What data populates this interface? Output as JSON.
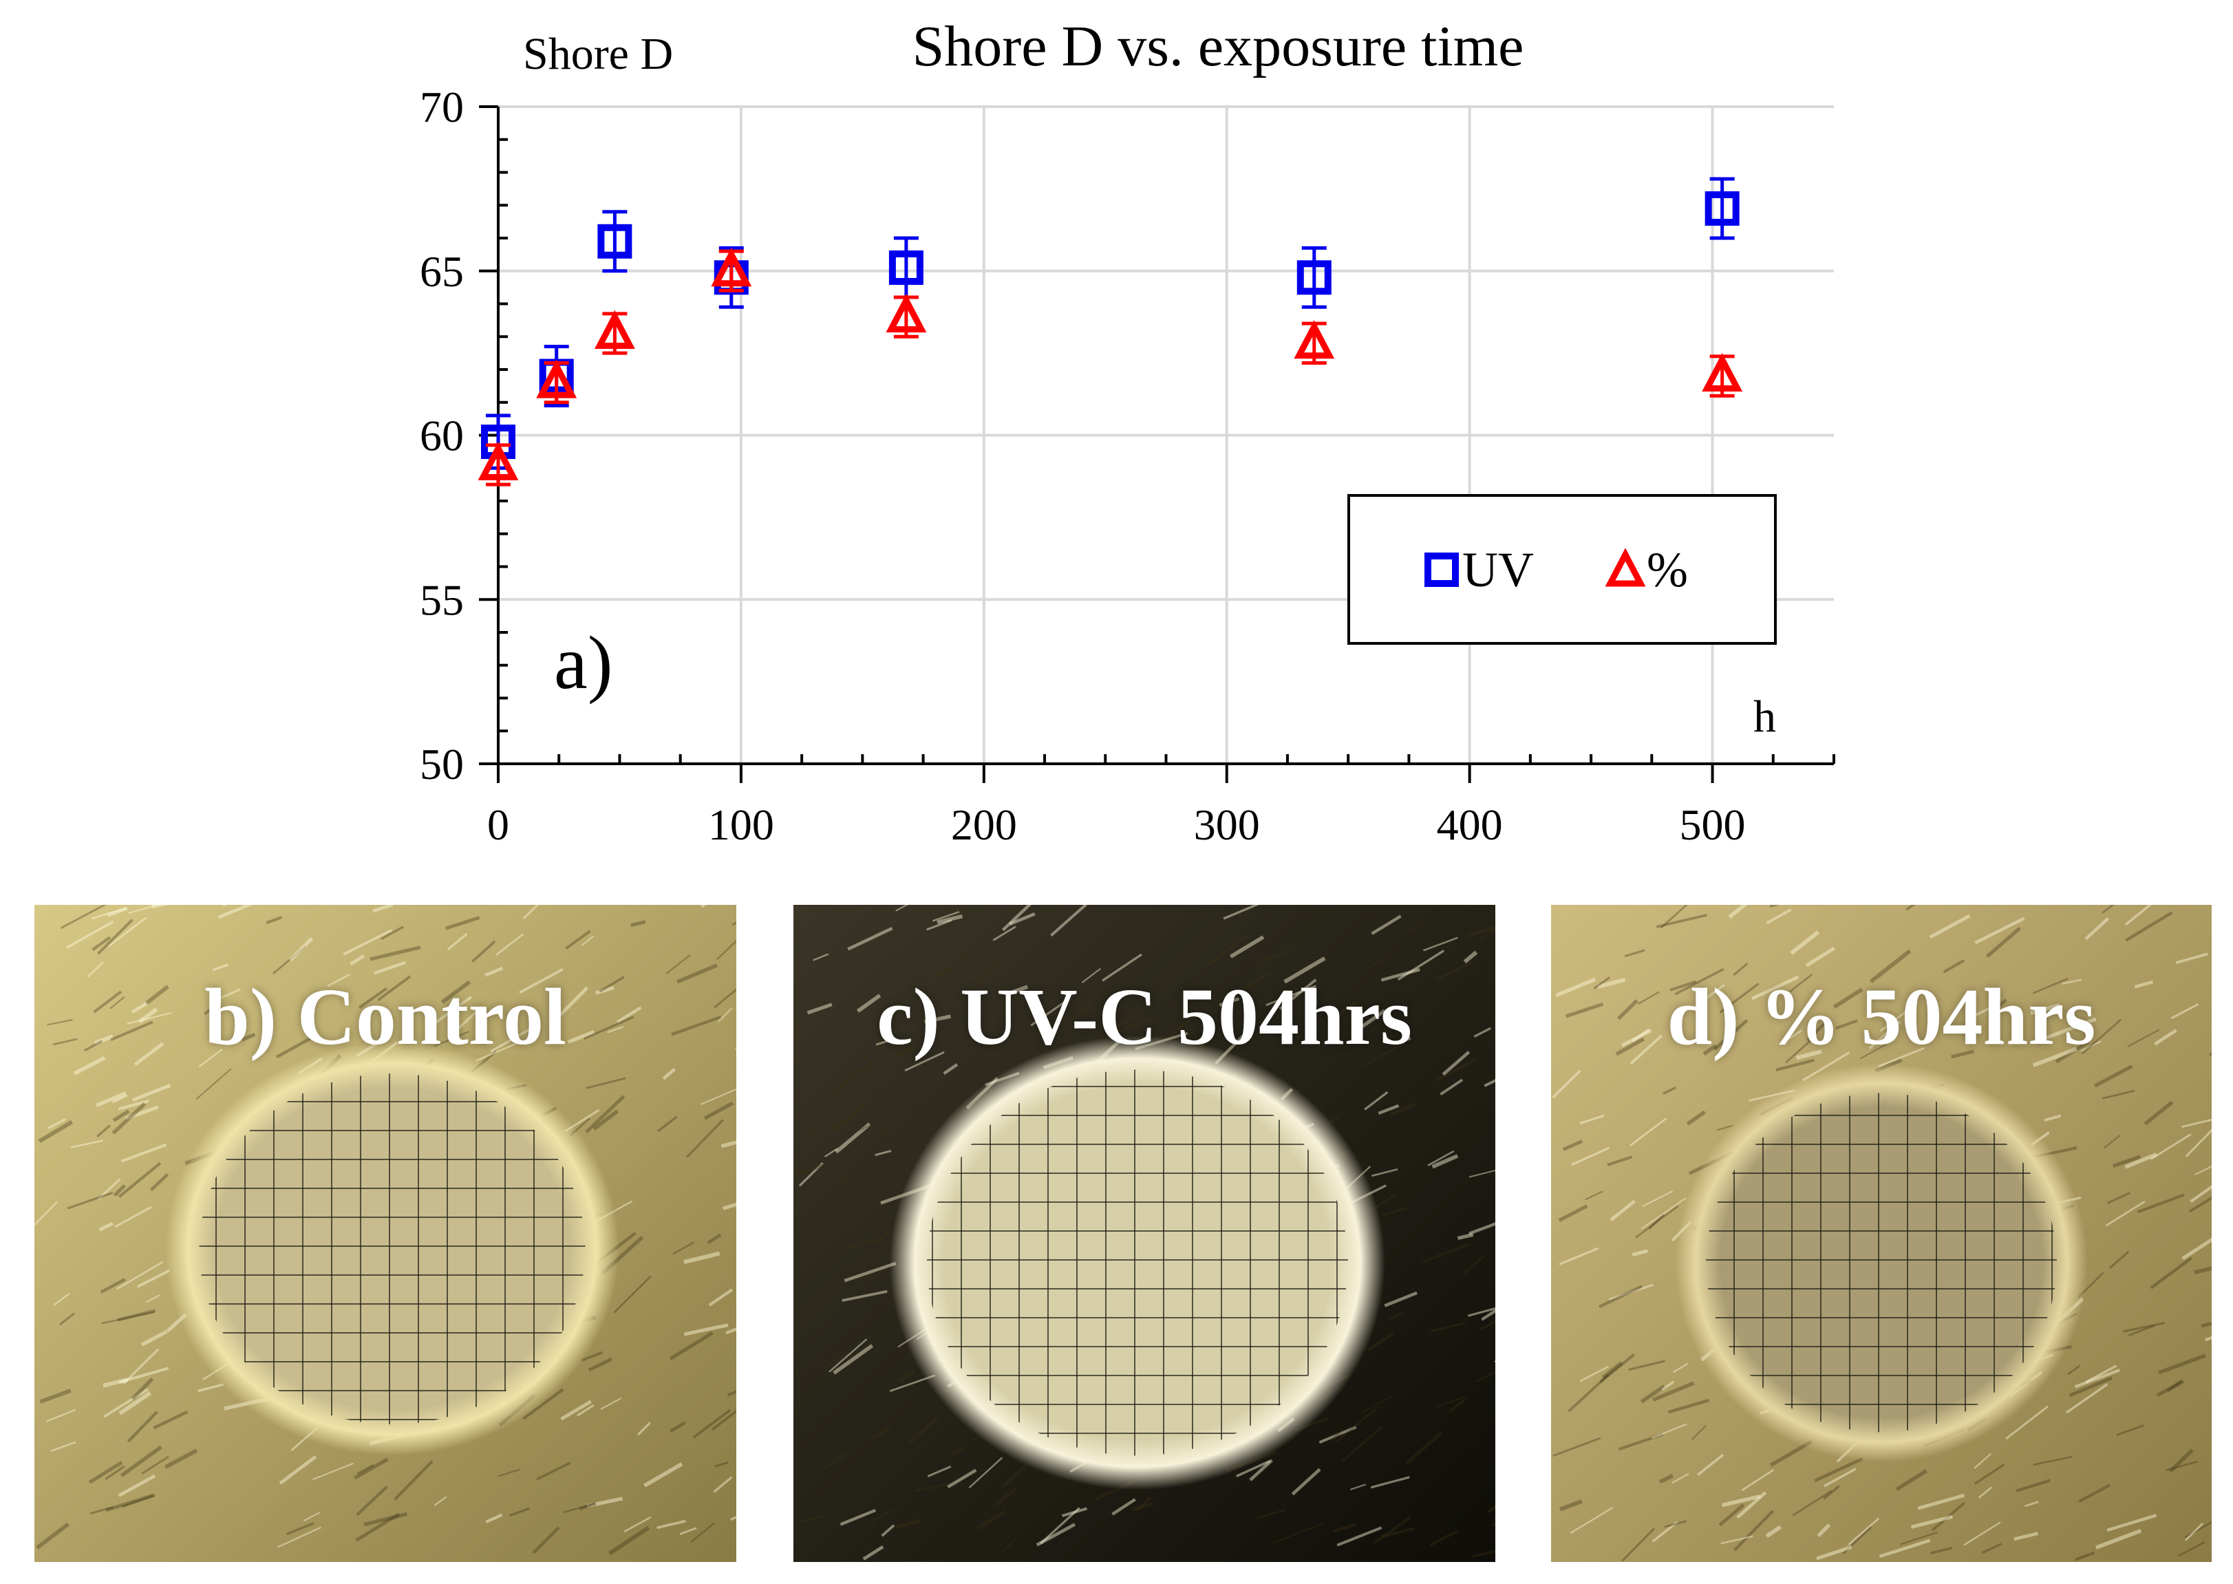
{
  "chart_data": {
    "type": "scatter",
    "title": "Shore D vs. exposure time",
    "ylabel": "Shore D",
    "xlabel": "h",
    "panel_label": "a)",
    "xlim": [
      0,
      550
    ],
    "ylim": [
      50,
      70
    ],
    "x_ticks": [
      0,
      100,
      200,
      300,
      400,
      500
    ],
    "y_ticks": [
      50,
      55,
      60,
      65,
      70
    ],
    "grid": true,
    "legend_position": "lower-right",
    "series": [
      {
        "name": "UV",
        "marker": "square",
        "color": "#0000ee",
        "points": [
          {
            "x": 0,
            "y": 59.8,
            "err": 0.8
          },
          {
            "x": 24,
            "y": 61.8,
            "err": 0.9
          },
          {
            "x": 48,
            "y": 65.9,
            "err": 0.9
          },
          {
            "x": 96,
            "y": 64.8,
            "err": 0.9
          },
          {
            "x": 168,
            "y": 65.1,
            "err": 0.9
          },
          {
            "x": 336,
            "y": 64.8,
            "err": 0.9
          },
          {
            "x": 504,
            "y": 66.9,
            "err": 0.9
          }
        ]
      },
      {
        "name": "%",
        "marker": "triangle",
        "color": "#ff0000",
        "points": [
          {
            "x": 0,
            "y": 59.1,
            "err": 0.6
          },
          {
            "x": 24,
            "y": 61.6,
            "err": 0.6
          },
          {
            "x": 48,
            "y": 63.1,
            "err": 0.6
          },
          {
            "x": 96,
            "y": 65.0,
            "err": 0.6
          },
          {
            "x": 168,
            "y": 63.6,
            "err": 0.6
          },
          {
            "x": 336,
            "y": 62.8,
            "err": 0.6
          },
          {
            "x": 504,
            "y": 61.8,
            "err": 0.6
          }
        ]
      }
    ]
  },
  "photos": [
    {
      "caption": "b) Control",
      "style": "control"
    },
    {
      "caption": "c) UV-C 504hrs",
      "style": "uvc"
    },
    {
      "caption": "d) % 504hrs",
      "style": "pct"
    }
  ]
}
